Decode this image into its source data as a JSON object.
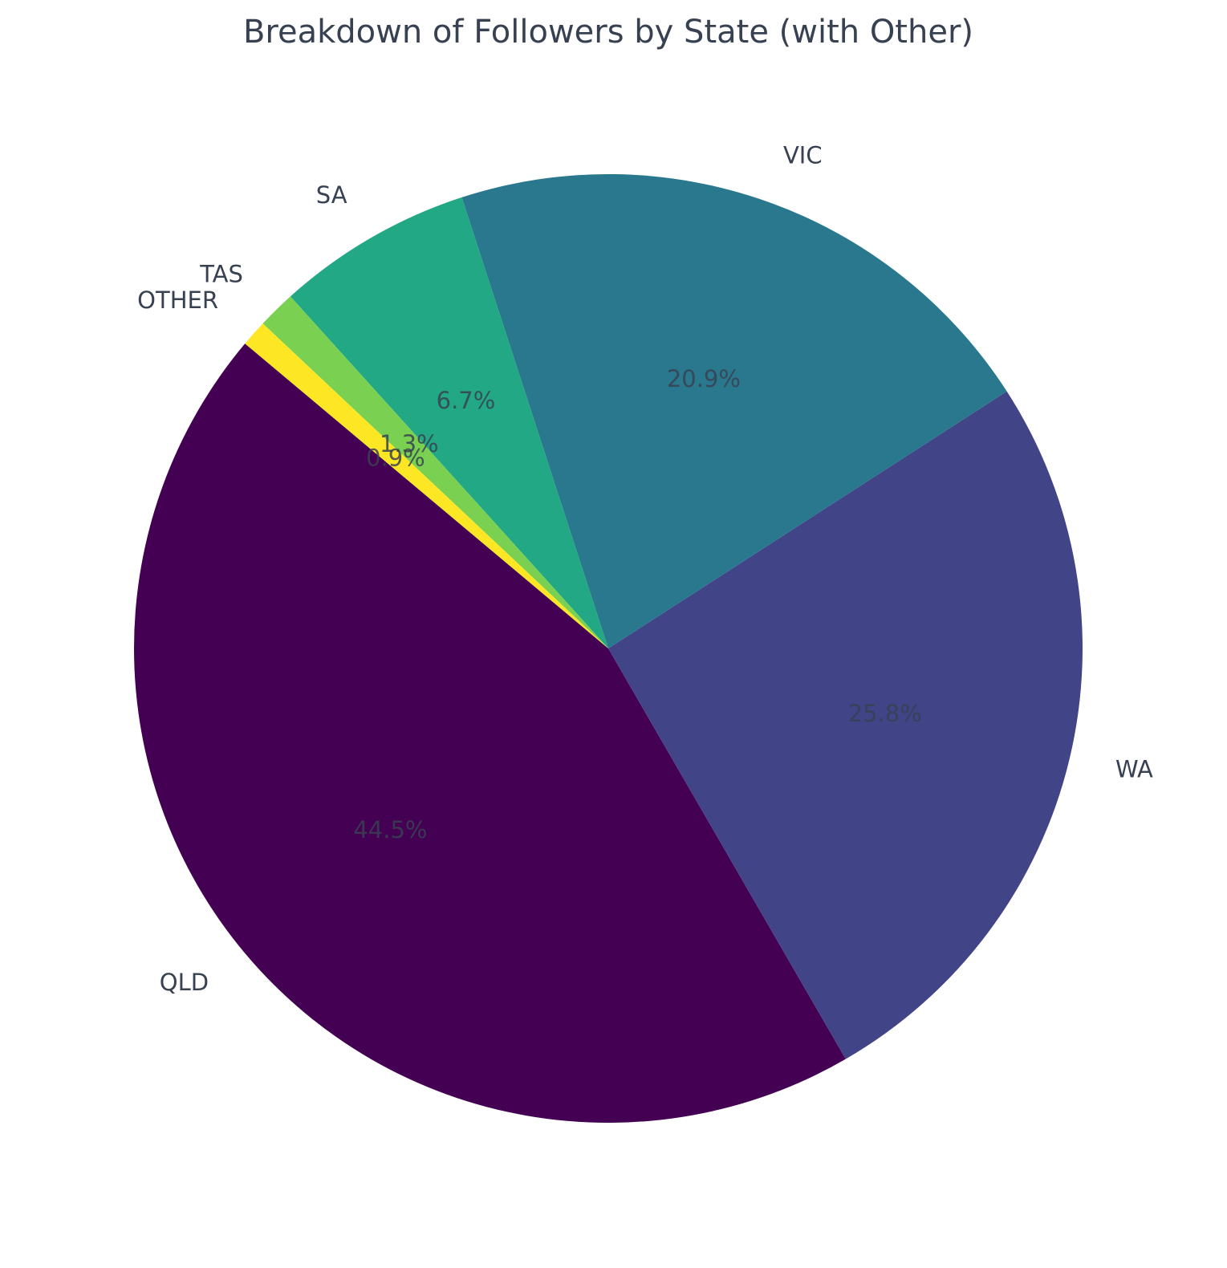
{
  "chart_data": {
    "type": "pie",
    "title": "Breakdown of Followers by State (with Other)",
    "start_angle_deg": 140,
    "direction": "counterclockwise",
    "slices": [
      {
        "label": "QLD",
        "value": 44.5,
        "pct_label": "44.5%",
        "color": "#440154"
      },
      {
        "label": "WA",
        "value": 25.8,
        "pct_label": "25.8%",
        "color": "#414487"
      },
      {
        "label": "VIC",
        "value": 20.9,
        "pct_label": "20.9%",
        "color": "#2a788e"
      },
      {
        "label": "SA",
        "value": 6.7,
        "pct_label": "6.7%",
        "color": "#22a884"
      },
      {
        "label": "TAS",
        "value": 1.3,
        "pct_label": "1.3%",
        "color": "#7ad151"
      },
      {
        "label": "OTHER",
        "value": 0.9,
        "pct_label": "0.9%",
        "color": "#fde725"
      }
    ]
  }
}
